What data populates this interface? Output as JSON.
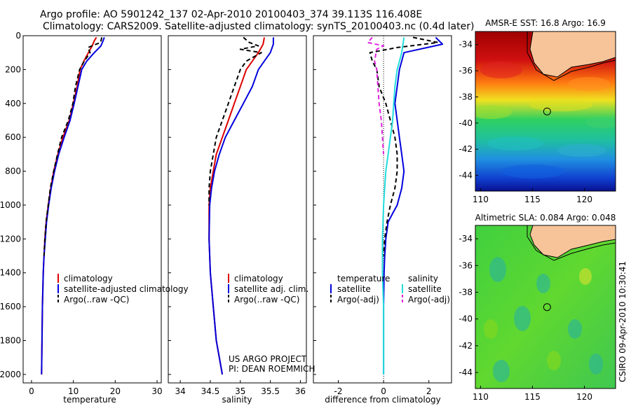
{
  "title": {
    "line1": "Argo profile: AO 5901242_137 02-Apr-2010 20100403_374 39.113S 116.408E",
    "line2": "Climatology: CARS2009. Satellite-adjusted climatology: synTS_20100403.nc (0.4d later)"
  },
  "footer": {
    "credit": "CSIRO 09-Apr-2010 10:30:41"
  },
  "colors": {
    "climatology": "#dd0000",
    "satellite": "#0000dd",
    "argo": "#000000",
    "salinity_satellite": "#22dddd",
    "salinity_argo": "#dd22dd",
    "land": "#f7c49a"
  },
  "chart_data": [
    {
      "id": "temperature",
      "type": "line",
      "xlabel": "temperature",
      "ylabel": "",
      "xlim": [
        -2,
        31
      ],
      "ylim": [
        2050,
        0
      ],
      "y_reversed": true,
      "xticks": [
        0,
        10,
        20,
        30
      ],
      "yticks": [
        0,
        200,
        400,
        600,
        800,
        1000,
        1200,
        1400,
        1600,
        1800,
        2000
      ],
      "legend": {
        "position": "lower-center",
        "entries": [
          "climatology",
          "satellite-adjusted climatology",
          "Argo(..raw -QC)"
        ]
      },
      "series": [
        {
          "name": "climatology",
          "style": "solid",
          "color": "#dd0000",
          "x": [
            15.5,
            15.0,
            14.5,
            13.6,
            12.5,
            11.6,
            10.9,
            10.0,
            9.0,
            7.5,
            6.3,
            5.3,
            4.6,
            4.0,
            3.5,
            3.2,
            3.0,
            2.8,
            2.6,
            2.5,
            2.4
          ],
          "y": [
            10,
            30,
            60,
            100,
            150,
            200,
            300,
            400,
            500,
            600,
            700,
            800,
            900,
            1000,
            1100,
            1200,
            1300,
            1400,
            1600,
            1800,
            2000
          ]
        },
        {
          "name": "satellite-adjusted climatology",
          "style": "solid",
          "color": "#0000dd",
          "x": [
            17.4,
            17.1,
            16.6,
            15.0,
            13.2,
            12.0,
            11.1,
            10.2,
            9.2,
            7.8,
            6.5,
            5.5,
            4.7,
            4.1,
            3.6,
            3.3,
            3.0,
            2.8,
            2.6,
            2.5,
            2.4
          ],
          "y": [
            10,
            30,
            60,
            100,
            150,
            200,
            300,
            400,
            500,
            600,
            700,
            800,
            900,
            1000,
            1100,
            1200,
            1300,
            1400,
            1600,
            1800,
            2000
          ]
        },
        {
          "name": "Argo(..raw -QC)",
          "style": "dashed",
          "color": "#000000",
          "x": [
            16.8,
            16.5,
            13.5,
            14.0,
            12.6,
            11.5,
            10.5,
            9.9,
            8.8,
            7.2,
            6.2,
            5.3,
            4.5,
            4.0,
            3.5,
            3.2,
            3.0
          ],
          "y": [
            10,
            40,
            70,
            100,
            150,
            200,
            300,
            400,
            500,
            600,
            700,
            800,
            900,
            1000,
            1100,
            1200,
            1300
          ]
        }
      ]
    },
    {
      "id": "salinity",
      "type": "line",
      "xlabel": "salinity",
      "ylabel": "",
      "xlim": [
        33.8,
        36.1
      ],
      "ylim": [
        2050,
        0
      ],
      "y_reversed": true,
      "xticks": [
        34,
        34.5,
        35,
        35.5,
        36
      ],
      "yticks": [
        0,
        200,
        400,
        600,
        800,
        1000,
        1200,
        1400,
        1600,
        1800,
        2000
      ],
      "legend": {
        "position": "lower-center",
        "entries": [
          "climatology",
          "satellite adj. clim.",
          "Argo(..raw -QC)"
        ]
      },
      "annotations": [
        "US ARGO PROJECT",
        "PI: DEAN ROEMMICH"
      ],
      "series": [
        {
          "name": "climatology",
          "style": "solid",
          "color": "#dd0000",
          "x": [
            35.4,
            35.38,
            35.3,
            35.2,
            35.1,
            35.0,
            34.9,
            34.8,
            34.7,
            34.6,
            34.55,
            34.5,
            34.48,
            34.48,
            34.5,
            34.55,
            34.6,
            34.65,
            34.7
          ],
          "y": [
            10,
            50,
            100,
            150,
            200,
            300,
            400,
            500,
            600,
            700,
            800,
            900,
            1000,
            1200,
            1400,
            1600,
            1800,
            1900,
            2000
          ]
        },
        {
          "name": "satellite adj. clim.",
          "style": "solid",
          "color": "#0000dd",
          "x": [
            35.55,
            35.55,
            35.5,
            35.4,
            35.3,
            35.2,
            35.05,
            34.9,
            34.75,
            34.65,
            34.57,
            34.52,
            34.49,
            34.48,
            34.5,
            34.55,
            34.6,
            34.65,
            34.7
          ],
          "y": [
            10,
            50,
            100,
            150,
            200,
            300,
            400,
            500,
            600,
            700,
            800,
            900,
            1000,
            1200,
            1400,
            1600,
            1800,
            1900,
            2000
          ]
        },
        {
          "name": "Argo(..raw -QC)",
          "style": "dashed",
          "color": "#000000",
          "x": [
            35.05,
            35.15,
            35.3,
            35.0,
            35.35,
            35.1,
            35.0,
            34.9,
            34.8,
            34.7,
            34.6,
            34.55,
            34.5,
            34.48,
            34.48
          ],
          "y": [
            10,
            40,
            60,
            80,
            100,
            150,
            200,
            300,
            400,
            500,
            600,
            700,
            800,
            900,
            1000
          ]
        }
      ]
    },
    {
      "id": "difference",
      "type": "line",
      "xlabel": "difference from climatology",
      "ylabel": "",
      "xlim": [
        -3.1,
        3.0
      ],
      "ylim": [
        2050,
        0
      ],
      "y_reversed": true,
      "xticks": [
        -2,
        0,
        2
      ],
      "yticks": [
        0,
        200,
        400,
        600,
        800,
        1000,
        1200,
        1400,
        1600,
        1800,
        2000
      ],
      "legend": {
        "position": "lower-center",
        "headers": [
          "temperature",
          "salinity"
        ],
        "entries": [
          "satellite",
          "Argo(-adj)",
          "satellite",
          "Argo(-adj)"
        ]
      },
      "series": [
        {
          "name": "temperature satellite",
          "style": "solid",
          "color": "#0000dd",
          "x": [
            2.3,
            2.6,
            0.9,
            0.8,
            0.7,
            0.6,
            0.5,
            0.6,
            0.7,
            0.8,
            0.9,
            0.8,
            0.6,
            0.4,
            0.2,
            0.1,
            0.05,
            0.02,
            0.0,
            0.0
          ],
          "y": [
            10,
            50,
            100,
            150,
            200,
            300,
            400,
            500,
            600,
            700,
            800,
            900,
            1000,
            1050,
            1100,
            1200,
            1300,
            1400,
            1600,
            2000
          ]
        },
        {
          "name": "temperature Argo(-adj)",
          "style": "dashed",
          "color": "#000000",
          "x": [
            1.3,
            2.4,
            0.6,
            -0.6,
            -0.5,
            -0.3,
            -0.2,
            0.1,
            0.3,
            0.5,
            0.6,
            0.6,
            0.5,
            0.3,
            0.15,
            0.05,
            0.0
          ],
          "y": [
            10,
            40,
            70,
            100,
            150,
            200,
            300,
            400,
            500,
            600,
            700,
            800,
            900,
            1000,
            1100,
            1200,
            1300
          ]
        },
        {
          "name": "salinity satellite",
          "style": "solid",
          "color": "#22dddd",
          "x": [
            0.9,
            0.8,
            0.6,
            0.5,
            0.45,
            0.4,
            0.3,
            0.2,
            0.1,
            0.05,
            0.0,
            -0.05,
            -0.05,
            0.0,
            0.0
          ],
          "y": [
            10,
            100,
            200,
            300,
            400,
            500,
            600,
            700,
            800,
            900,
            1000,
            1200,
            1400,
            1600,
            2000
          ]
        },
        {
          "name": "salinity Argo(-adj)",
          "style": "dashed",
          "color": "#dd22dd",
          "x": [
            -0.5,
            -0.7,
            0.0,
            -0.3,
            -0.4,
            -0.3,
            -0.25,
            -0.2,
            -0.1,
            -0.05,
            0.0
          ],
          "y": [
            10,
            40,
            60,
            80,
            150,
            200,
            300,
            400,
            500,
            600,
            700
          ]
        }
      ]
    },
    {
      "id": "sst_map",
      "type": "heatmap",
      "title": "AMSR-E SST: 16.8  Argo: 16.9",
      "xlim": [
        109.5,
        123
      ],
      "ylim": [
        -45.2,
        -33
      ],
      "xticks": [
        110,
        115,
        120
      ],
      "yticks": [
        -34,
        -36,
        -38,
        -40,
        -42,
        -44
      ],
      "marker": {
        "lon": 116.408,
        "lat": -39.113
      }
    },
    {
      "id": "sla_map",
      "type": "heatmap",
      "title": "Altimetric SLA: 0.084  Argo: 0.048",
      "xlim": [
        109.5,
        123
      ],
      "ylim": [
        -45.2,
        -33
      ],
      "xticks": [
        110,
        115,
        120
      ],
      "yticks": [
        -34,
        -36,
        -38,
        -40,
        -42,
        -44
      ],
      "marker": {
        "lon": 116.408,
        "lat": -39.113
      }
    }
  ]
}
